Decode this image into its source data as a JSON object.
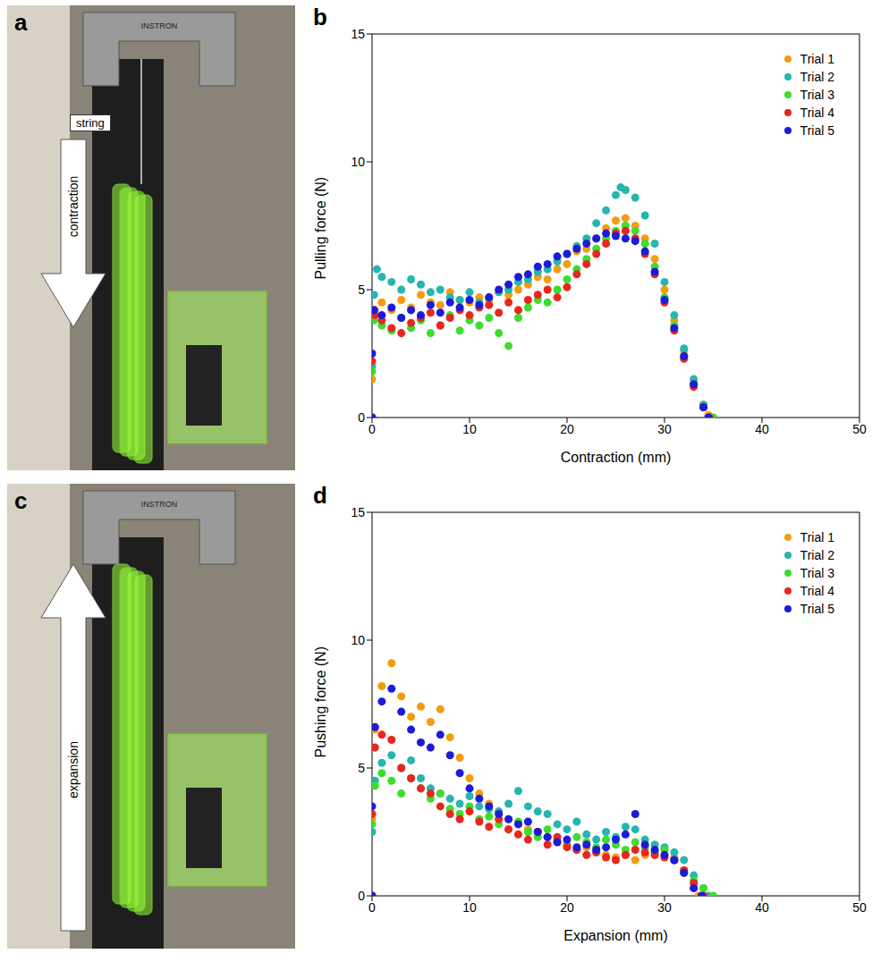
{
  "photos": [
    {
      "panel": "a",
      "device_label": "INSTRON",
      "annotations": [
        "string",
        "contraction"
      ]
    },
    {
      "panel": "c",
      "device_label": "INSTRON",
      "annotations": [
        "expansion"
      ]
    }
  ],
  "chart_data": [
    {
      "type": "scatter",
      "panel": "b",
      "x_label": "Contraction (mm)",
      "y_label": "Pulling force (N)",
      "xlim": [
        0,
        50
      ],
      "xticks": [
        0,
        10,
        20,
        30,
        40,
        50
      ],
      "ylim": [
        0,
        15
      ],
      "yticks": [
        0,
        5,
        10,
        15
      ],
      "legend": "upper right",
      "marker": "circle",
      "series": [
        {
          "name": "Trial 1",
          "color": "#f39c12",
          "x": [
            0,
            0,
            0.3,
            1,
            2,
            3,
            4,
            5,
            6,
            7,
            8,
            9,
            10,
            11,
            12,
            13,
            14,
            15,
            16,
            17,
            18,
            19,
            20,
            21,
            22,
            23,
            24,
            25,
            26,
            27,
            28,
            29,
            30,
            31,
            32,
            33,
            34,
            34.5
          ],
          "values": [
            0,
            1.5,
            4.2,
            4.5,
            4.2,
            4.6,
            4.3,
            4.8,
            4.5,
            4.4,
            4.9,
            4.6,
            4.5,
            4.7,
            4.6,
            4.9,
            4.8,
            5.0,
            5.2,
            5.5,
            5.4,
            5.8,
            6.0,
            6.5,
            6.6,
            7.0,
            7.4,
            7.7,
            7.8,
            7.5,
            7.0,
            6.2,
            5.0,
            3.8,
            2.6,
            1.4,
            0.5,
            0.1
          ]
        },
        {
          "name": "Trial 2",
          "color": "#26b5b0",
          "x": [
            0,
            0,
            0.2,
            0.5,
            1,
            2,
            3,
            4,
            5,
            6,
            7,
            8,
            9,
            10,
            11,
            12,
            13,
            14,
            15,
            16,
            17,
            18,
            19,
            20,
            21,
            22,
            23,
            24,
            25,
            25.5,
            26,
            27,
            28,
            29,
            30,
            31,
            32,
            33,
            34,
            34.7
          ],
          "values": [
            0,
            2,
            4.8,
            5.8,
            5.5,
            5.3,
            5.0,
            5.4,
            5.2,
            4.9,
            5.0,
            4.7,
            4.6,
            4.9,
            4.5,
            4.7,
            4.9,
            5.0,
            5.3,
            5.4,
            5.7,
            5.8,
            6.1,
            6.4,
            6.7,
            7.0,
            7.6,
            8.1,
            8.7,
            9.0,
            8.9,
            8.6,
            7.9,
            6.8,
            5.3,
            4.0,
            2.7,
            1.5,
            0.5,
            0
          ]
        },
        {
          "name": "Trial 3",
          "color": "#3ddc2f",
          "x": [
            0,
            0,
            0.2,
            1,
            2,
            3,
            4,
            5,
            6,
            7,
            8,
            9,
            10,
            11,
            12,
            13,
            14,
            15,
            16,
            17,
            18,
            19,
            20,
            21,
            22,
            23,
            24,
            25,
            26,
            27,
            28,
            29,
            30,
            31,
            32,
            33,
            34,
            35
          ],
          "values": [
            0,
            1.8,
            3.8,
            3.6,
            3.4,
            3.9,
            3.5,
            3.8,
            3.3,
            3.6,
            4.0,
            3.4,
            3.8,
            3.6,
            3.9,
            3.3,
            2.8,
            3.9,
            4.3,
            4.6,
            4.5,
            5.0,
            5.4,
            5.8,
            6.2,
            6.6,
            7.0,
            7.3,
            7.5,
            7.3,
            6.8,
            5.9,
            4.7,
            3.6,
            2.4,
            1.3,
            0.4,
            0
          ]
        },
        {
          "name": "Trial 4",
          "color": "#e8261d",
          "x": [
            0,
            0,
            0.3,
            1,
            2,
            3,
            4,
            5,
            6,
            7,
            8,
            9,
            10,
            11,
            12,
            13,
            14,
            15,
            16,
            17,
            18,
            19,
            20,
            21,
            22,
            23,
            24,
            25,
            26,
            27,
            28,
            29,
            30,
            31,
            32,
            33,
            34,
            34.6
          ],
          "values": [
            0,
            2.2,
            4.0,
            3.8,
            3.5,
            3.3,
            3.7,
            3.9,
            4.1,
            3.6,
            3.9,
            4.2,
            4.0,
            4.3,
            4.4,
            4.1,
            4.5,
            4.2,
            4.6,
            4.8,
            5.0,
            4.7,
            5.1,
            5.6,
            6.0,
            6.4,
            6.8,
            7.2,
            7.3,
            7.0,
            6.4,
            5.6,
            4.5,
            3.4,
            2.3,
            1.2,
            0.4,
            0
          ]
        },
        {
          "name": "Trial 5",
          "color": "#1c1cd8",
          "x": [
            0,
            0,
            0.2,
            1,
            2,
            3,
            4,
            5,
            6,
            7,
            8,
            9,
            10,
            11,
            12,
            13,
            14,
            15,
            16,
            17,
            18,
            19,
            20,
            21,
            22,
            23,
            24,
            25,
            26,
            27,
            28,
            29,
            30,
            31,
            32,
            33,
            34,
            34.5
          ],
          "values": [
            0,
            2.5,
            4.2,
            4.0,
            4.3,
            3.9,
            4.2,
            4.0,
            4.4,
            4.1,
            4.5,
            4.3,
            4.6,
            4.4,
            4.7,
            5.0,
            5.2,
            5.5,
            5.6,
            5.9,
            6.0,
            6.3,
            6.4,
            6.6,
            6.8,
            7.0,
            7.2,
            7.1,
            7.0,
            6.9,
            6.5,
            5.7,
            4.6,
            3.5,
            2.4,
            1.3,
            0.4,
            0
          ]
        }
      ]
    },
    {
      "type": "scatter",
      "panel": "d",
      "x_label": "Expansion (mm)",
      "y_label": "Pushing force (N)",
      "xlim": [
        0,
        50
      ],
      "xticks": [
        0,
        10,
        20,
        30,
        40,
        50
      ],
      "ylim": [
        0,
        15
      ],
      "yticks": [
        0,
        5,
        10,
        15
      ],
      "legend": "upper right",
      "marker": "circle",
      "series": [
        {
          "name": "Trial 1",
          "color": "#f39c12",
          "x": [
            0,
            0,
            0.3,
            1,
            2,
            3,
            4,
            5,
            6,
            7,
            8,
            9,
            10,
            11,
            12,
            13,
            14,
            15,
            16,
            17,
            18,
            19,
            20,
            21,
            22,
            23,
            24,
            25,
            26,
            27,
            28,
            29,
            30,
            31,
            32,
            33,
            33.5
          ],
          "values": [
            0,
            3,
            6.5,
            8.2,
            9.1,
            7.8,
            7.0,
            7.4,
            6.8,
            7.3,
            6.2,
            5.4,
            4.6,
            4.0,
            3.6,
            3.3,
            3.0,
            2.8,
            2.6,
            2.5,
            2.3,
            2.1,
            2.0,
            1.8,
            1.9,
            1.7,
            1.6,
            1.5,
            1.6,
            1.4,
            1.6,
            1.7,
            1.8,
            1.5,
            1.0,
            0.3,
            0
          ]
        },
        {
          "name": "Trial 2",
          "color": "#26b5b0",
          "x": [
            0,
            0,
            0.3,
            1,
            2,
            3,
            4,
            5,
            6,
            7,
            8,
            9,
            10,
            11,
            12,
            13,
            14,
            15,
            16,
            17,
            18,
            19,
            20,
            21,
            22,
            23,
            24,
            25,
            26,
            27,
            28,
            29,
            30,
            31,
            32,
            33,
            34,
            34.5
          ],
          "values": [
            0,
            2.5,
            4.5,
            5.2,
            5.5,
            5.0,
            5.3,
            4.6,
            4.2,
            4.0,
            3.8,
            3.6,
            3.9,
            3.5,
            3.4,
            3.3,
            3.6,
            4.1,
            3.5,
            3.3,
            3.2,
            2.8,
            2.6,
            2.9,
            2.4,
            2.2,
            2.5,
            2.3,
            2.7,
            2.6,
            2.2,
            2.0,
            1.9,
            1.7,
            1.4,
            0.8,
            0.3,
            0
          ]
        },
        {
          "name": "Trial 3",
          "color": "#3ddc2f",
          "x": [
            0,
            0,
            0.3,
            1,
            2,
            3,
            4,
            5,
            6,
            7,
            8,
            9,
            10,
            11,
            12,
            13,
            14,
            15,
            16,
            17,
            18,
            19,
            20,
            21,
            22,
            23,
            24,
            25,
            26,
            27,
            28,
            29,
            30,
            31,
            32,
            33,
            34,
            35
          ],
          "values": [
            0,
            2.8,
            4.3,
            4.8,
            4.5,
            4.0,
            4.6,
            4.2,
            3.8,
            4.0,
            3.4,
            3.2,
            3.5,
            3.0,
            3.1,
            2.8,
            2.6,
            2.9,
            2.5,
            2.3,
            2.6,
            2.2,
            2.0,
            2.3,
            2.1,
            1.9,
            2.2,
            2.0,
            1.8,
            2.1,
            1.9,
            1.7,
            1.8,
            1.4,
            0.9,
            0.6,
            0.3,
            0
          ]
        },
        {
          "name": "Trial 4",
          "color": "#e8261d",
          "x": [
            0,
            0,
            0.3,
            1,
            2,
            3,
            4,
            5,
            6,
            7,
            8,
            9,
            10,
            11,
            12,
            13,
            14,
            15,
            16,
            17,
            18,
            19,
            20,
            21,
            22,
            23,
            24,
            25,
            26,
            27,
            28,
            29,
            30,
            31,
            32,
            33,
            34
          ],
          "values": [
            0,
            3.2,
            5.8,
            6.3,
            6.1,
            5.0,
            4.6,
            4.2,
            4.0,
            3.5,
            3.2,
            3.0,
            3.3,
            2.9,
            2.7,
            3.0,
            2.6,
            2.4,
            2.2,
            2.5,
            2.0,
            2.3,
            1.9,
            1.8,
            1.6,
            1.7,
            1.5,
            1.4,
            1.6,
            1.8,
            1.7,
            1.6,
            1.5,
            1.4,
            1.0,
            0.5,
            0
          ]
        },
        {
          "name": "Trial 5",
          "color": "#1c1cd8",
          "x": [
            0,
            0,
            0.3,
            1,
            2,
            3,
            4,
            5,
            6,
            7,
            8,
            9,
            10,
            11,
            12,
            13,
            14,
            15,
            16,
            17,
            18,
            19,
            20,
            21,
            22,
            23,
            24,
            25,
            26,
            27,
            28,
            29,
            30,
            31,
            32,
            33,
            33.8
          ],
          "values": [
            0,
            3.5,
            6.6,
            7.6,
            8.1,
            7.2,
            6.5,
            6.0,
            5.8,
            6.3,
            5.5,
            4.8,
            4.2,
            3.8,
            3.5,
            3.2,
            3.0,
            2.8,
            2.9,
            2.5,
            2.3,
            2.1,
            2.2,
            1.9,
            2.0,
            1.8,
            1.9,
            2.2,
            2.4,
            3.2,
            2.0,
            1.8,
            1.6,
            1.4,
            0.9,
            0.3,
            0
          ]
        }
      ]
    }
  ]
}
